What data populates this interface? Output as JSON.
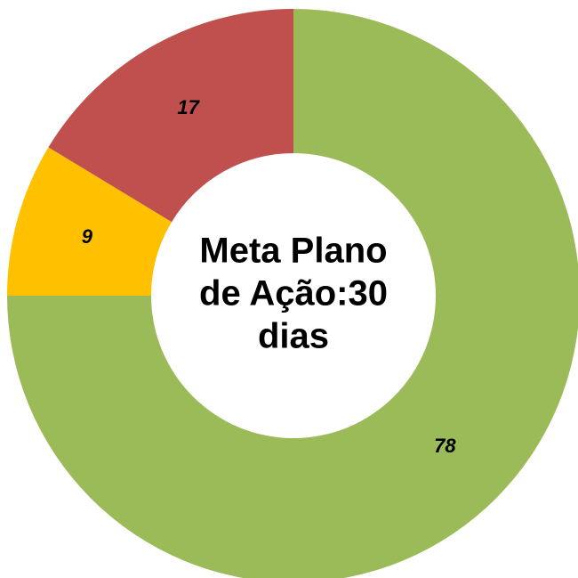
{
  "chart_data": {
    "type": "donut",
    "categories": [
      null,
      null,
      null
    ],
    "values": [
      78,
      9,
      17
    ],
    "colors": [
      "#9bbb59",
      "#ffc000",
      "#c0504d"
    ],
    "center_text": [
      "Meta Plano",
      "de Ação:30",
      "dias"
    ]
  }
}
